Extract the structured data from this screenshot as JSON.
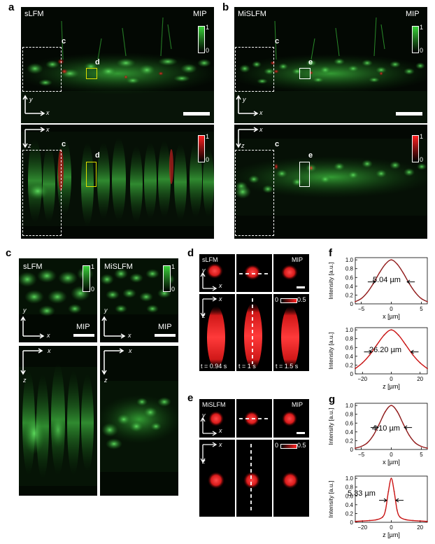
{
  "panels": {
    "a": {
      "letter": "a",
      "xy_title": "sLFM",
      "xy_mip": "MIP",
      "xy_cbar_hi": "1",
      "xy_cbar_lo": "0",
      "xy_box_c": "c",
      "xy_box_d": "d",
      "xy_axis_y": "y",
      "xy_axis_x": "x",
      "xz_axis_x": "x",
      "xz_axis_z": "z",
      "xz_box_c": "c",
      "xz_box_d": "d",
      "xz_cbar_hi": "1",
      "xz_cbar_lo": "0"
    },
    "b": {
      "letter": "b",
      "xy_title": "MiSLFM",
      "xy_mip": "MIP",
      "xy_cbar_hi": "1",
      "xy_cbar_lo": "0",
      "xy_box_c": "c",
      "xy_box_e": "e",
      "xy_axis_y": "y",
      "xy_axis_x": "x",
      "xz_axis_x": "x",
      "xz_axis_z": "z",
      "xz_box_c": "c",
      "xz_box_e": "e",
      "xz_cbar_hi": "1",
      "xz_cbar_lo": "0"
    },
    "c": {
      "letter": "c",
      "left_title": "sLFM",
      "right_title": "MiSLFM",
      "cbar_hi": "1",
      "cbar_lo": "0",
      "cbar_hi2": "1",
      "cbar_lo2": "0",
      "mip": "MIP",
      "mip2": "MIP",
      "axis_y": "y",
      "axis_x": "x",
      "axis_y2": "y",
      "axis_x2": "x",
      "xz_x": "x",
      "xz_z": "z",
      "xz_x2": "x",
      "xz_z2": "z"
    },
    "d": {
      "letter": "d",
      "title": "sLFM",
      "mip": "MIP",
      "axis_y": "y",
      "axis_x": "x",
      "axis_x2": "x",
      "axis_z": "z",
      "cbar_lo": "0",
      "cbar_hi": "0.5",
      "t1": "t = 0.94 s",
      "t2": "t = 1 s",
      "t3": "t = 1.5 s"
    },
    "e": {
      "letter": "e",
      "title": "MiSLFM",
      "mip": "MIP",
      "axis_y": "y",
      "axis_x": "x",
      "axis_x2": "x",
      "axis_z": "z",
      "cbar_lo": "0",
      "cbar_hi": "0.5"
    },
    "f": {
      "letter": "f",
      "top_fwhm": "5.04 µm",
      "bottom_fwhm": "26.20 µm"
    },
    "g": {
      "letter": "g",
      "top_fwhm": "4.10 µm",
      "bottom_fwhm": "5.33 µm"
    }
  },
  "plot_text": {
    "ylabel": "Intensity [a.u.]",
    "xlabel_x": "x [µm]",
    "xlabel_z": "z [µm]"
  },
  "chart_data": [
    {
      "id": "f-top",
      "type": "line",
      "x": [
        -6,
        -5,
        -4,
        -3,
        -2,
        -1,
        0,
        1,
        2,
        3,
        4,
        5,
        6
      ],
      "series": [
        {
          "values": [
            0.05,
            0.12,
            0.26,
            0.46,
            0.7,
            0.9,
            1.0,
            0.9,
            0.7,
            0.46,
            0.26,
            0.12,
            0.05
          ]
        }
      ],
      "xlim": [
        -6,
        6
      ],
      "ylim": [
        0,
        1.05
      ],
      "xticks": [
        -5,
        0,
        5
      ],
      "yticks": [
        0,
        0.2,
        0.4,
        0.6,
        0.8,
        1.0
      ],
      "xlabel": "x [µm]",
      "ylabel": "Intensity [a.u.]",
      "annotation": "5.04 µm",
      "fwhm_um": 5.04,
      "color": "#8b1a1a"
    },
    {
      "id": "f-bottom",
      "type": "line",
      "x": [
        -25,
        -20,
        -15,
        -10,
        -5,
        0,
        5,
        10,
        15,
        20,
        25
      ],
      "series": [
        {
          "values": [
            0.12,
            0.25,
            0.43,
            0.66,
            0.88,
            1.0,
            0.88,
            0.66,
            0.43,
            0.25,
            0.12
          ]
        }
      ],
      "xlim": [
        -25,
        25
      ],
      "ylim": [
        0,
        1.05
      ],
      "xticks": [
        -20,
        0,
        20
      ],
      "yticks": [
        0,
        0.2,
        0.4,
        0.6,
        0.8,
        1.0
      ],
      "xlabel": "z [µm]",
      "ylabel": "Intensity [a.u.]",
      "annotation": "26.20 µm",
      "fwhm_um": 26.2,
      "color": "#cc1111"
    },
    {
      "id": "g-top",
      "type": "line",
      "x": [
        -6,
        -5,
        -4,
        -3,
        -2,
        -1,
        0,
        1,
        2,
        3,
        4,
        5,
        6
      ],
      "series": [
        {
          "values": [
            0.03,
            0.07,
            0.15,
            0.32,
            0.58,
            0.86,
            1.0,
            0.86,
            0.58,
            0.32,
            0.15,
            0.07,
            0.03
          ]
        }
      ],
      "xlim": [
        -6,
        6
      ],
      "ylim": [
        0,
        1.05
      ],
      "xticks": [
        -5,
        0,
        5
      ],
      "yticks": [
        0,
        0.2,
        0.4,
        0.6,
        0.8,
        1.0
      ],
      "xlabel": "x [µm]",
      "ylabel": "Intensity [a.u.]",
      "annotation": "4.10 µm",
      "fwhm_um": 4.1,
      "color": "#8b1a1a"
    },
    {
      "id": "g-bottom",
      "type": "line",
      "x": [
        -25,
        -20,
        -15,
        -10,
        -6,
        -4,
        -2,
        0,
        2,
        4,
        6,
        10,
        15,
        20,
        25
      ],
      "series": [
        {
          "values": [
            0.02,
            0.03,
            0.04,
            0.06,
            0.12,
            0.28,
            0.7,
            1.0,
            0.7,
            0.28,
            0.12,
            0.06,
            0.04,
            0.03,
            0.02
          ]
        }
      ],
      "xlim": [
        -25,
        25
      ],
      "ylim": [
        0,
        1.05
      ],
      "xticks": [
        -20,
        0,
        20
      ],
      "yticks": [
        0,
        0.2,
        0.4,
        0.6,
        0.8,
        1.0
      ],
      "xlabel": "z [µm]",
      "ylabel": "Intensity [a.u.]",
      "annotation": "5.33 µm",
      "fwhm_um": 5.33,
      "color": "#cc1111"
    }
  ]
}
